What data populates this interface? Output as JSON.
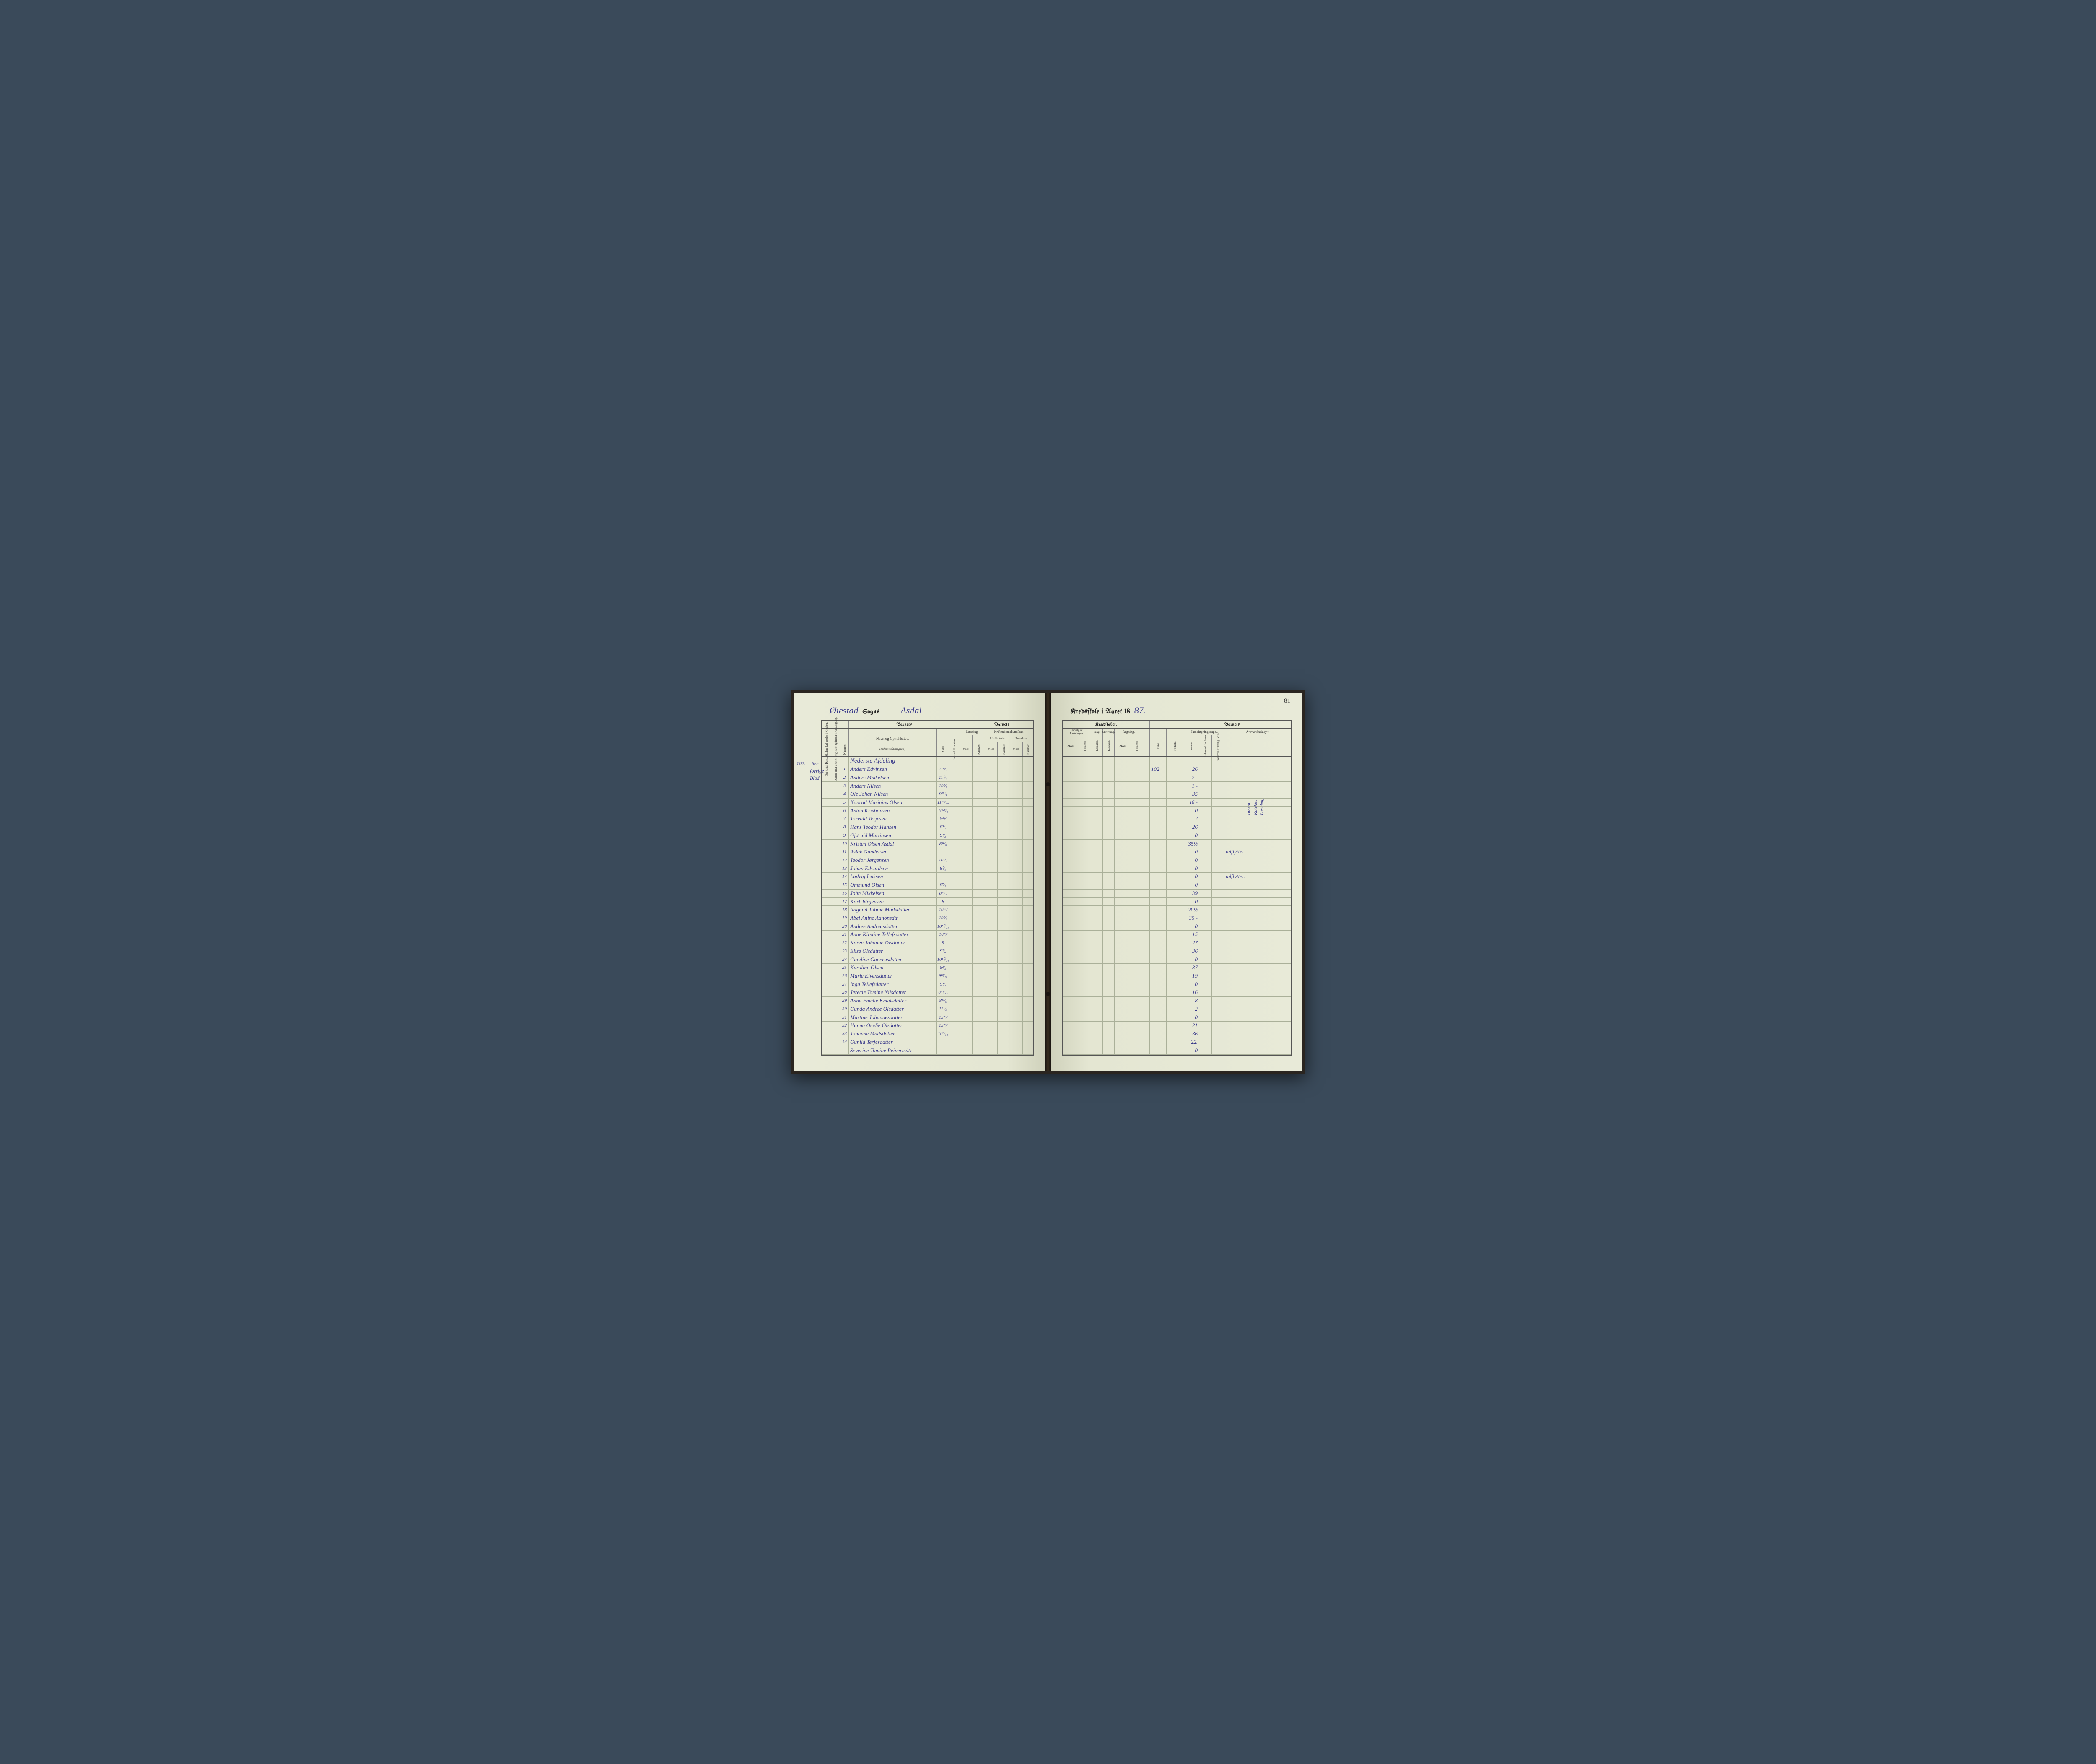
{
  "page_number": "81",
  "left_title": {
    "hw1": "Øiestad",
    "printed": "Sogns",
    "hw2": "Asdal"
  },
  "right_title": {
    "printed1": "Kredsſkole i Aaret 18",
    "hw_year": "87."
  },
  "margin_102": "102.",
  "margin_see": "See",
  "margin_forrige": "forrige",
  "margin_blad": "Blad.",
  "left_headers": {
    "v1": "Det Antal Dage, Skolen ſkal holdes i Kredſen.",
    "v2": "Datum, naar Skolen begynder og ſlutter hver Omgang.",
    "num": "Nummer.",
    "barnets1": "Barnets",
    "navn": "Navn og Opholdsſted.",
    "navn_sub": "(Anføres afdelingsvis).",
    "alder": "Alder.",
    "ind": "Indtrædelſesdatum.",
    "barnets2": "Barnets",
    "laes": "Læsning.",
    "krist": "Kriſtendomskundſkab.",
    "bibel": "Bibelhiſtorie.",
    "troes": "Troeslære.",
    "maal": "Maal.",
    "kar": "Karakter."
  },
  "right_headers": {
    "kund": "Kundſkaber.",
    "barnets": "Barnets",
    "udvalg": "Udvalg af Læſebogen.",
    "sang": "Sang.",
    "skriv": "Skrivning.",
    "regn": "Regning.",
    "maal": "Maal.",
    "kar": "Karakter.",
    "evne": "Evne.",
    "forh": "Forhold.",
    "skole": "Skoleſøgningsdage.",
    "modte": "mødte.",
    "fors1": "forſømte i det Hele.",
    "fors2": "forſømte af lovlig Grund.",
    "anm": "Anmærkninger."
  },
  "section_header": "Nederste Afdeling",
  "right_102": "102.",
  "vertical_notes": {
    "n1": "Bibelh.",
    "n2": "Katekis.",
    "n3": "Læsebog"
  },
  "rows": [
    {
      "n": "1",
      "name": "Anders Edvinsen",
      "age": "11⁴⁄₅",
      "m": "26",
      "anm": ""
    },
    {
      "n": "2",
      "name": "Anders Mikkelsen",
      "age": "11⁰⁄₇",
      "m": "7 -",
      "anm": ""
    },
    {
      "n": "3",
      "name": "Anders Nilsen",
      "age": "10²⁄₇",
      "m": "1 -",
      "anm": ""
    },
    {
      "n": "4",
      "name": "Ole Johan Nilsen",
      "age": "9²⁷⁄₅",
      "m": "35",
      "anm": ""
    },
    {
      "n": "5",
      "name": "Konrad Marinius Olsen",
      "age": "11⁵⁸⁄₁₀",
      "m": "16 -",
      "anm": ""
    },
    {
      "n": "6",
      "name": "Anton Kristiansen",
      "age": "10²⁸⁄₅",
      "m": "0",
      "anm": ""
    },
    {
      "n": "7",
      "name": "Torvald Terjesen",
      "age": "9³²⁄",
      "m": "2",
      "anm": ""
    },
    {
      "n": "8",
      "name": "Hans Teodor Hansen",
      "age": "8⁵⁄₂",
      "m": "26",
      "anm": ""
    },
    {
      "n": "9",
      "name": "Gjøruld Martinsen",
      "age": "9²⁄₃",
      "m": "0",
      "anm": ""
    },
    {
      "n": "10",
      "name": "Kristen Olsen Asdal",
      "age": "8²²⁄₆",
      "m": "35½",
      "anm": ""
    },
    {
      "n": "11",
      "name": "Aslak Gundersen",
      "age": "",
      "m": "0",
      "anm": "udflyttet."
    },
    {
      "n": "12",
      "name": "Teodor Jørgensen",
      "age": "10⁷⁄₂",
      "m": "0",
      "anm": ""
    },
    {
      "n": "13",
      "name": "Johan Edvardsen",
      "age": "8⁰⁄₃",
      "m": "0",
      "anm": ""
    },
    {
      "n": "14",
      "name": "Ludvig Isaksen",
      "age": "",
      "m": "0",
      "anm": "udflyttet."
    },
    {
      "n": "15",
      "name": "Ommund Olsen",
      "age": "8⁷⁄₅",
      "m": "0",
      "anm": ""
    },
    {
      "n": "16",
      "name": "John Mikkelsen",
      "age": "8²²⁄₃",
      "m": "39",
      "anm": ""
    },
    {
      "n": "17",
      "name": "Karl Jørgensen",
      "age": "8",
      "m": "0",
      "anm": ""
    },
    {
      "n": "18",
      "name": "Ragnild Tobine Madsdatter",
      "age": "10¹⁷⁄",
      "m": "20½",
      "anm": ""
    },
    {
      "n": "19",
      "name": "Abel Anine Aanonsdtr",
      "age": "10²⁄₂",
      "m": "35 -",
      "anm": ""
    },
    {
      "n": "20",
      "name": "Andree Andreasdatter",
      "age": "10¹⁰⁄₁₁",
      "m": "0",
      "anm": ""
    },
    {
      "n": "21",
      "name": "Anne Kirstine Tellefsdatter",
      "age": "10²³⁄",
      "m": "15",
      "anm": ""
    },
    {
      "n": "22",
      "name": "Karen Johanne Olsdatter",
      "age": "9",
      "m": "27",
      "anm": ""
    },
    {
      "n": "23",
      "name": "Elise Olsdatter",
      "age": "9²⁄₆",
      "m": "36",
      "anm": ""
    },
    {
      "n": "24",
      "name": "Gundine Gunerusdatter",
      "age": "10¹⁰⁄₁₄",
      "m": "0",
      "anm": ""
    },
    {
      "n": "25",
      "name": "Karoline Olsen",
      "age": "8²⁄₂",
      "m": "37",
      "anm": ""
    },
    {
      "n": "26",
      "name": "Marie Elvensdatter",
      "age": "9²³⁄₁₀",
      "m": "19",
      "anm": ""
    },
    {
      "n": "27",
      "name": "Inga Tellefsdatter",
      "age": "9⁵⁄₄",
      "m": "0",
      "anm": ""
    },
    {
      "n": "28",
      "name": "Terecie Tomine Nilsdatter",
      "age": "8²⁵⁄₁₂",
      "m": "16",
      "anm": ""
    },
    {
      "n": "29",
      "name": "Anna Emelie Knudsdatter",
      "age": "8¹³⁄₅",
      "m": "8",
      "anm": ""
    },
    {
      "n": "30",
      "name": "Gunda Andree Olsdatter",
      "age": "11¹⁄₆",
      "m": "2",
      "anm": ""
    },
    {
      "n": "31",
      "name": "Martine Johannesdatter",
      "age": "13²⁷⁄",
      "m": "0",
      "anm": ""
    },
    {
      "n": "32",
      "name": "Hanna Oeelie Olsdatter",
      "age": "13²⁴⁄",
      "m": "21",
      "anm": ""
    },
    {
      "n": "33",
      "name": "Johanne Madsdatter",
      "age": "10⁷⁄₁₀",
      "m": "36",
      "anm": ""
    },
    {
      "n": "34",
      "name": "Gunild Terjesdatter",
      "age": "",
      "m": "22.",
      "anm": ""
    },
    {
      "n": "",
      "name": "Severine Tomine Reinertsdtr",
      "age": "",
      "m": "0",
      "anm": ""
    }
  ],
  "colors": {
    "paper": "#e8ead8",
    "ink_print": "#222222",
    "ink_hand": "#3a3a8a",
    "rule": "#aab099",
    "frame": "#555555",
    "cover": "#2a2520",
    "bg": "#3a4a5a"
  }
}
